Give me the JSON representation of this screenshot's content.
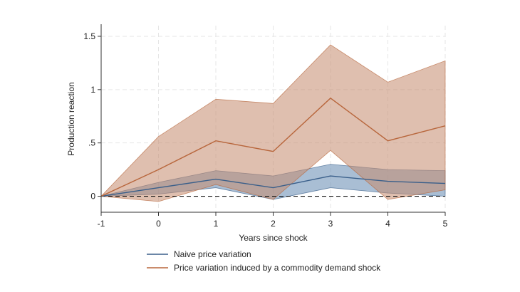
{
  "chart_data": {
    "type": "line",
    "title": "",
    "xlabel": "Years since shock",
    "ylabel": "Production reaction",
    "x": [
      -1,
      0,
      1,
      2,
      3,
      4,
      5
    ],
    "xticks": [
      "-1",
      "0",
      "1",
      "2",
      "3",
      "4",
      "5"
    ],
    "yticks": [
      "0",
      ".5",
      "1",
      "1.5"
    ],
    "ylim": [
      -0.15,
      1.6
    ],
    "grid": true,
    "legend": "bottom",
    "zero_line": "dashed",
    "series": [
      {
        "name": "Naive price variation",
        "color": "#3a5f8a",
        "band_color": "#6f93b8",
        "values": [
          0,
          0.08,
          0.16,
          0.08,
          0.19,
          0.14,
          0.12
        ],
        "lower": [
          0,
          0.02,
          0.08,
          -0.03,
          0.08,
          0.03,
          0.0
        ],
        "upper": [
          0,
          0.13,
          0.24,
          0.19,
          0.3,
          0.25,
          0.24
        ]
      },
      {
        "name": "Price variation induced by a commodity demand shock",
        "color": "#b8663c",
        "band_color": "#c48a6e",
        "values": [
          0,
          0.25,
          0.52,
          0.42,
          0.92,
          0.52,
          0.66
        ],
        "lower": [
          0,
          -0.05,
          0.11,
          -0.03,
          0.43,
          -0.03,
          0.06
        ],
        "upper": [
          0,
          0.56,
          0.91,
          0.87,
          1.42,
          1.07,
          1.27
        ]
      }
    ]
  }
}
